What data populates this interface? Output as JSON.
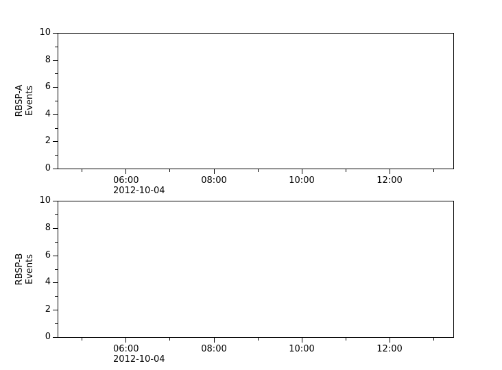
{
  "figure": {
    "background": "#ffffff",
    "foreground": "#000000",
    "title": ""
  },
  "chart_data": [
    {
      "type": "line",
      "panel": "top",
      "title": "",
      "xlabel": "",
      "ylabel_lines": [
        "RBSP-A",
        "Events"
      ],
      "ylim": [
        0,
        10
      ],
      "yticks_major": [
        0,
        2,
        4,
        6,
        8,
        10
      ],
      "ytick_labels": [
        "0",
        "2",
        "4",
        "6",
        "8",
        "10"
      ],
      "yticks_minor": [
        1,
        3,
        5,
        7,
        9
      ],
      "xlim_hours": [
        4.45,
        13.45
      ],
      "xticks_major": [
        {
          "hour": 6,
          "label": "06:00",
          "date": "2012-10-04"
        },
        {
          "hour": 8,
          "label": "08:00"
        },
        {
          "hour": 10,
          "label": "10:00"
        },
        {
          "hour": 12,
          "label": "12:00"
        }
      ],
      "xticks_minor_hours": [
        5,
        7,
        9,
        11,
        13
      ],
      "grid": false,
      "legend": null,
      "series": []
    },
    {
      "type": "line",
      "panel": "bottom",
      "title": "",
      "xlabel": "",
      "ylabel_lines": [
        "RBSP-B",
        "Events"
      ],
      "ylim": [
        0,
        10
      ],
      "yticks_major": [
        0,
        2,
        4,
        6,
        8,
        10
      ],
      "ytick_labels": [
        "0",
        "2",
        "4",
        "6",
        "8",
        "10"
      ],
      "yticks_minor": [
        1,
        3,
        5,
        7,
        9
      ],
      "xlim_hours": [
        4.45,
        13.45
      ],
      "xticks_major": [
        {
          "hour": 6,
          "label": "06:00",
          "date": "2012-10-04"
        },
        {
          "hour": 8,
          "label": "08:00"
        },
        {
          "hour": 10,
          "label": "10:00"
        },
        {
          "hour": 12,
          "label": "12:00"
        }
      ],
      "xticks_minor_hours": [
        5,
        7,
        9,
        11,
        13
      ],
      "grid": false,
      "legend": null,
      "series": []
    }
  ]
}
